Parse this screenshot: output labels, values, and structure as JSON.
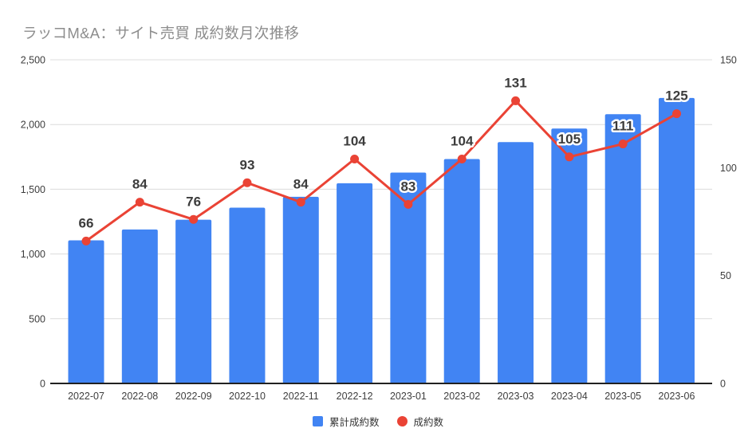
{
  "title": "ラッコM&A：サイト売買 成約数月次推移",
  "colors": {
    "bar": "#4184f3",
    "line": "#ea4335",
    "grid": "#dcdcdc",
    "axis_line": "#212121",
    "tick_text": "#3d3d3d",
    "data_label": "#3c3c3c",
    "title_text": "#8d8d8d"
  },
  "chart_data": {
    "type": "combo",
    "title": "ラッコM&A：サイト売買 成約数月次推移",
    "categories": [
      "2022-07",
      "2022-08",
      "2022-09",
      "2022-10",
      "2022-11",
      "2022-12",
      "2023-01",
      "2023-02",
      "2023-03",
      "2023-04",
      "2023-05",
      "2023-06"
    ],
    "series": [
      {
        "name": "累計成約数",
        "type": "bar",
        "axis": "left",
        "color": "#4184f3",
        "values": [
          1105,
          1189,
          1265,
          1358,
          1442,
          1546,
          1629,
          1733,
          1864,
          1969,
          2080,
          2205
        ]
      },
      {
        "name": "成約数",
        "type": "line",
        "axis": "right",
        "color": "#ea4335",
        "values": [
          66,
          84,
          76,
          93,
          84,
          104,
          83,
          104,
          131,
          105,
          111,
          125
        ],
        "data_labels": [
          "66",
          "84",
          "76",
          "93",
          "84",
          "104",
          "83",
          "104",
          "131",
          "105",
          "111",
          "125"
        ]
      }
    ],
    "left_axis": {
      "min": 0,
      "max": 2500,
      "ticks": [
        {
          "value": 0,
          "label": "0"
        },
        {
          "value": 500,
          "label": "500"
        },
        {
          "value": 1000,
          "label": "1,000"
        },
        {
          "value": 1500,
          "label": "1,500"
        },
        {
          "value": 2000,
          "label": "2,000"
        },
        {
          "value": 2500,
          "label": "2,500"
        }
      ]
    },
    "right_axis": {
      "min": 0,
      "max": 150,
      "ticks": [
        {
          "value": 0,
          "label": "0"
        },
        {
          "value": 50,
          "label": "50"
        },
        {
          "value": 100,
          "label": "100"
        },
        {
          "value": 150,
          "label": "150"
        }
      ]
    },
    "grid": true,
    "legend_position": "bottom"
  },
  "legend": {
    "items": [
      {
        "label": "累計成約数",
        "marker": "square",
        "color": "#4184f3"
      },
      {
        "label": "成約数",
        "marker": "circle",
        "color": "#ea4335"
      }
    ]
  }
}
